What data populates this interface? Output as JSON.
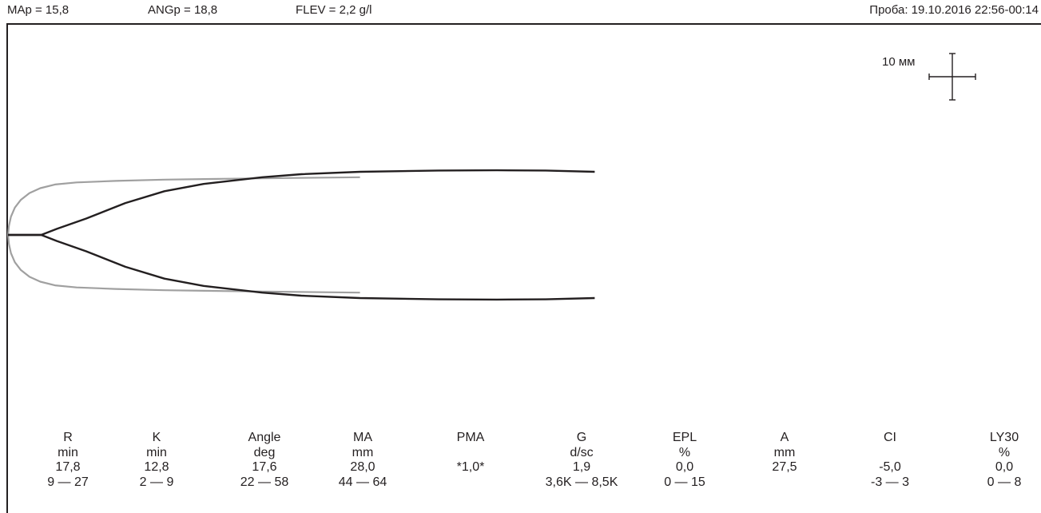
{
  "header": {
    "map": "MAp = 15,8",
    "angp": "ANGp = 18,8",
    "flev": "FLEV = 2,2 g/l",
    "sample": "Проба: 19.10.2016 22:56-00:14"
  },
  "scale": {
    "label": "10 мм"
  },
  "colors": {
    "ink": "#231f20",
    "reference_trace": "#a0a0a0",
    "sample_trace": "#231f20"
  },
  "params": [
    {
      "name": "R",
      "unit": "min",
      "value": "17,8",
      "range": "9 — 27"
    },
    {
      "name": "K",
      "unit": "min",
      "value": "12,8",
      "range": "2 — 9"
    },
    {
      "name": "Angle",
      "unit": "deg",
      "value": "17,6",
      "range": "22 — 58"
    },
    {
      "name": "MA",
      "unit": "mm",
      "value": "28,0",
      "range": "44 — 64"
    },
    {
      "name": "PMA",
      "unit": "",
      "value": "*1,0*",
      "range": ""
    },
    {
      "name": "G",
      "unit": "d/sc",
      "value": "1,9",
      "range": "3,6K — 8,5K"
    },
    {
      "name": "EPL",
      "unit": "%",
      "value": "0,0",
      "range": "0 — 15"
    },
    {
      "name": "A",
      "unit": "mm",
      "value": "27,5",
      "range": ""
    },
    {
      "name": "CI",
      "unit": "",
      "value": "-5,0",
      "range": "-3 — 3"
    },
    {
      "name": "LY30",
      "unit": "%",
      "value": "0,0",
      "range": "0 — 8"
    }
  ],
  "chart_data": {
    "type": "line",
    "series": [
      {
        "x": [
          0,
          3.4,
          5,
          8,
          12,
          16,
          20,
          26,
          30,
          36,
          44,
          50,
          55,
          60
        ],
        "y": [
          0,
          0,
          2,
          5.4,
          10.5,
          14.4,
          16.8,
          19.0,
          20.0,
          20.8,
          21.2,
          21.3,
          21.2,
          20.8
        ]
      },
      {
        "x": [
          0,
          0.1,
          0.3,
          0.7,
          1.3,
          2.2,
          3.3,
          4.8,
          7,
          11,
          16,
          25,
          36
        ],
        "y": [
          0,
          3,
          6,
          9,
          11.5,
          13.8,
          15.4,
          16.6,
          17.3,
          17.8,
          18.2,
          18.6,
          19.0
        ]
      }
    ]
  }
}
